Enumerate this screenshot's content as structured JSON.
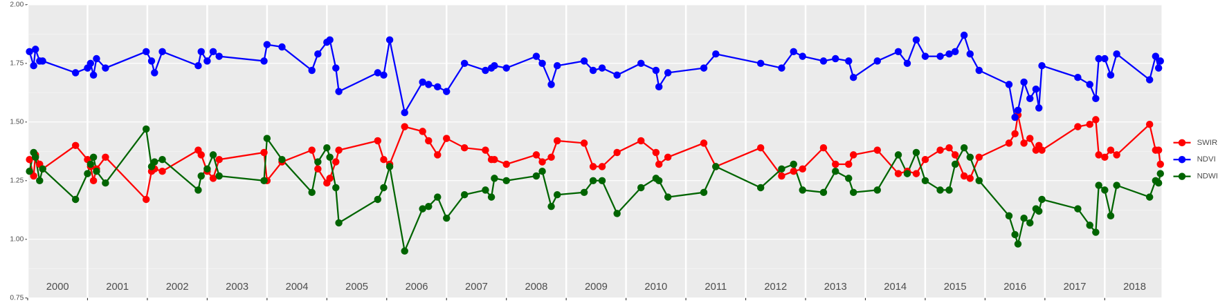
{
  "chart_data": {
    "type": "line",
    "x": [
      2000.03,
      2000.1,
      2000.13,
      2000.2,
      2000.25,
      2000.8,
      2001.0,
      2001.05,
      2001.1,
      2001.15,
      2001.3,
      2001.98,
      2002.07,
      2002.12,
      2002.25,
      2002.85,
      2002.9,
      2003.0,
      2003.1,
      2003.2,
      2003.95,
      2004.0,
      2004.25,
      2004.75,
      2004.85,
      2005.0,
      2005.05,
      2005.15,
      2005.2,
      2005.85,
      2005.95,
      2006.05,
      2006.3,
      2006.6,
      2006.7,
      2006.85,
      2007.0,
      2007.3,
      2007.65,
      2007.75,
      2007.8,
      2008.0,
      2008.5,
      2008.6,
      2008.75,
      2008.85,
      2009.3,
      2009.45,
      2009.6,
      2009.85,
      2010.25,
      2010.5,
      2010.55,
      2010.7,
      2011.3,
      2011.5,
      2012.25,
      2012.6,
      2012.8,
      2012.95,
      2013.3,
      2013.5,
      2013.72,
      2013.8,
      2014.2,
      2014.55,
      2014.7,
      2014.85,
      2015.0,
      2015.25,
      2015.4,
      2015.5,
      2015.65,
      2015.75,
      2015.9,
      2016.4,
      2016.5,
      2016.55,
      2016.65,
      2016.75,
      2016.85,
      2016.9,
      2016.95,
      2017.55,
      2017.75,
      2017.85,
      2017.9,
      2018.0,
      2018.1,
      2018.2,
      2018.75,
      2018.85,
      2018.9,
      2018.93
    ],
    "series": [
      {
        "name": "SWIR",
        "color": "#ff0000",
        "values": [
          1.34,
          1.27,
          1.36,
          1.32,
          1.3,
          1.4,
          1.34,
          1.31,
          1.25,
          1.3,
          1.35,
          1.17,
          1.29,
          1.3,
          1.29,
          1.38,
          1.36,
          1.29,
          1.26,
          1.34,
          1.37,
          1.25,
          1.33,
          1.38,
          1.3,
          1.24,
          1.26,
          1.33,
          1.38,
          1.42,
          1.34,
          1.32,
          1.48,
          1.46,
          1.42,
          1.36,
          1.43,
          1.39,
          1.38,
          1.34,
          1.34,
          1.32,
          1.36,
          1.33,
          1.35,
          1.42,
          1.41,
          1.31,
          1.31,
          1.37,
          1.42,
          1.37,
          1.32,
          1.35,
          1.41,
          1.31,
          1.39,
          1.27,
          1.29,
          1.3,
          1.39,
          1.32,
          1.32,
          1.36,
          1.38,
          1.28,
          1.29,
          1.28,
          1.34,
          1.38,
          1.39,
          1.36,
          1.27,
          1.26,
          1.35,
          1.41,
          1.45,
          1.53,
          1.41,
          1.43,
          1.38,
          1.4,
          1.38,
          1.48,
          1.49,
          1.51,
          1.36,
          1.35,
          1.38,
          1.36,
          1.49,
          1.38,
          1.38,
          1.32
        ]
      },
      {
        "name": "NDVI",
        "color": "#0000ff",
        "values": [
          1.8,
          1.74,
          1.81,
          1.76,
          1.76,
          1.71,
          1.73,
          1.75,
          1.7,
          1.77,
          1.73,
          1.8,
          1.76,
          1.71,
          1.8,
          1.74,
          1.8,
          1.76,
          1.8,
          1.78,
          1.76,
          1.83,
          1.82,
          1.72,
          1.79,
          1.84,
          1.85,
          1.73,
          1.63,
          1.71,
          1.7,
          1.85,
          1.54,
          1.67,
          1.66,
          1.65,
          1.63,
          1.75,
          1.72,
          1.73,
          1.74,
          1.73,
          1.78,
          1.75,
          1.66,
          1.74,
          1.76,
          1.72,
          1.73,
          1.7,
          1.75,
          1.72,
          1.65,
          1.71,
          1.73,
          1.79,
          1.75,
          1.73,
          1.8,
          1.78,
          1.76,
          1.77,
          1.76,
          1.69,
          1.76,
          1.8,
          1.75,
          1.85,
          1.78,
          1.78,
          1.79,
          1.8,
          1.87,
          1.79,
          1.72,
          1.66,
          1.52,
          1.55,
          1.67,
          1.6,
          1.64,
          1.56,
          1.74,
          1.69,
          1.66,
          1.6,
          1.77,
          1.77,
          1.7,
          1.79,
          1.68,
          1.78,
          1.73,
          1.76
        ]
      },
      {
        "name": "NDWI",
        "color": "#006400",
        "values": [
          1.29,
          1.37,
          1.35,
          1.25,
          1.3,
          1.17,
          1.28,
          1.32,
          1.35,
          1.29,
          1.24,
          1.47,
          1.31,
          1.33,
          1.34,
          1.21,
          1.27,
          1.3,
          1.36,
          1.27,
          1.25,
          1.43,
          1.34,
          1.2,
          1.33,
          1.39,
          1.35,
          1.22,
          1.07,
          1.17,
          1.22,
          1.31,
          0.95,
          1.13,
          1.14,
          1.18,
          1.09,
          1.19,
          1.21,
          1.18,
          1.26,
          1.25,
          1.27,
          1.29,
          1.14,
          1.19,
          1.2,
          1.25,
          1.25,
          1.11,
          1.22,
          1.26,
          1.25,
          1.18,
          1.2,
          1.31,
          1.22,
          1.3,
          1.32,
          1.21,
          1.2,
          1.29,
          1.26,
          1.2,
          1.21,
          1.36,
          1.28,
          1.37,
          1.25,
          1.21,
          1.21,
          1.32,
          1.39,
          1.35,
          1.25,
          1.1,
          1.02,
          0.98,
          1.09,
          1.07,
          1.13,
          1.12,
          1.17,
          1.13,
          1.06,
          1.03,
          1.23,
          1.21,
          1.1,
          1.23,
          1.18,
          1.25,
          1.24,
          1.28
        ]
      }
    ],
    "xlim": [
      2000.0,
      2018.95
    ],
    "xticks": [
      2000,
      2001,
      2002,
      2003,
      2004,
      2005,
      2006,
      2007,
      2008,
      2009,
      2010,
      2011,
      2012,
      2013,
      2014,
      2015,
      2016,
      2017,
      2018
    ],
    "year_labels": [
      "2000",
      "2001",
      "2002",
      "2003",
      "2004",
      "2005",
      "2006",
      "2007",
      "2008",
      "2009",
      "2010",
      "2011",
      "2012",
      "2013",
      "2014",
      "2015",
      "2016",
      "2017",
      "2018"
    ],
    "ylim": [
      0.75,
      2.0
    ],
    "yticks": [
      0.75,
      {
        "value": 1.0,
        "label": "1.00"
      },
      1.25,
      {
        "value": 1.5,
        "label": "1.50"
      },
      1.75,
      {
        "value": 2.0,
        "label": "2.00"
      }
    ],
    "grid": true,
    "legend": "right"
  }
}
